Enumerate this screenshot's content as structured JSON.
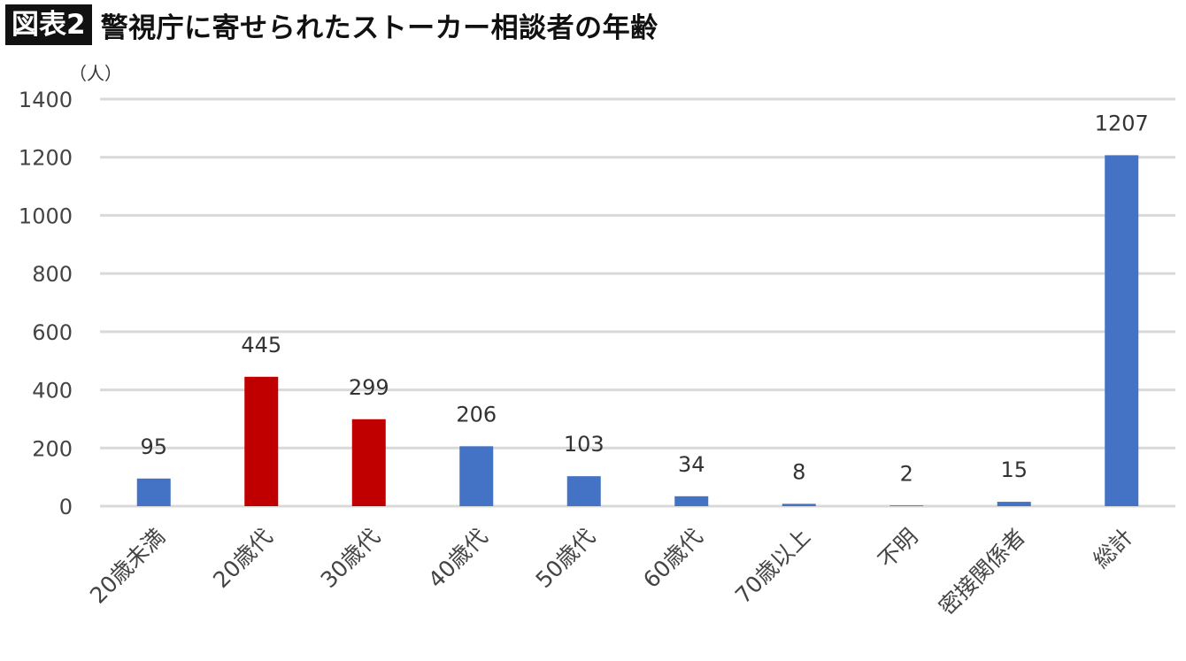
{
  "header": {
    "badge": "図表2",
    "title": "警視庁に寄せられたストーカー相談者の年齢"
  },
  "chart_data": {
    "type": "bar",
    "unit_label": "（人）",
    "categories": [
      "20歳未満",
      "20歳代",
      "30歳代",
      "40歳代",
      "50歳代",
      "60歳代",
      "70歳以上",
      "不明",
      "密接関係者",
      "総計"
    ],
    "values": [
      95,
      445,
      299,
      206,
      103,
      34,
      8,
      2,
      15,
      1207
    ],
    "data_labels": [
      "95",
      "445",
      "299",
      "206",
      "103",
      "34",
      "8",
      "2",
      "15",
      "1207"
    ],
    "bar_colors": [
      "#4472c4",
      "#c00000",
      "#c00000",
      "#4472c4",
      "#4472c4",
      "#4472c4",
      "#4472c4",
      "#4472c4",
      "#4472c4",
      "#4472c4"
    ],
    "ylim": [
      0,
      1400
    ],
    "yticks": [
      "0",
      "200",
      "400",
      "600",
      "800",
      "1000",
      "1200",
      "1400"
    ],
    "grid": true,
    "legend": "none",
    "gridline_color": "#d9d9d9"
  }
}
